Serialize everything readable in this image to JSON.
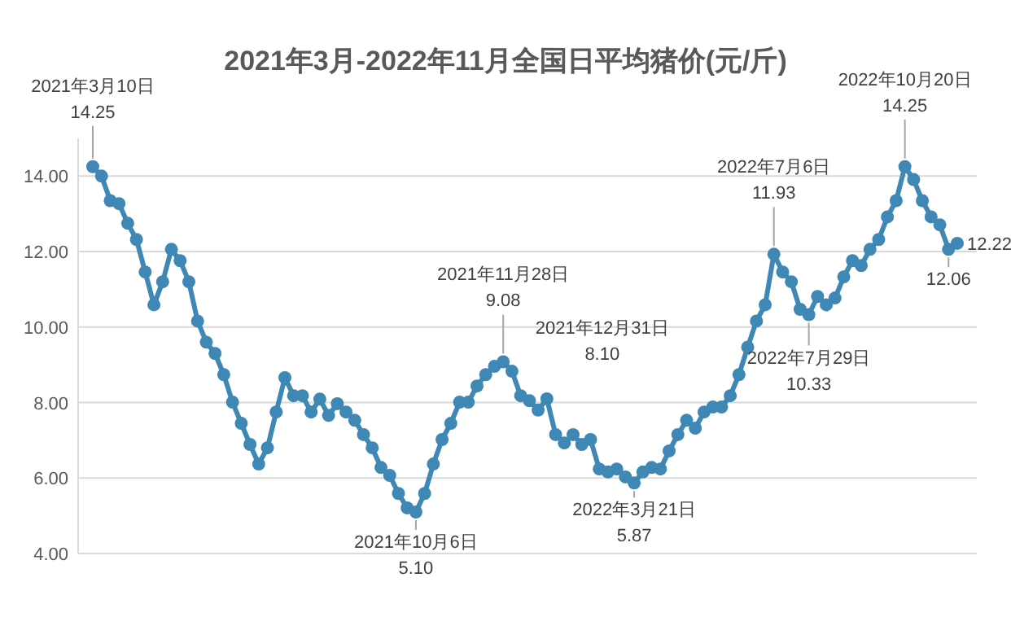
{
  "chart_data": {
    "type": "line",
    "title": "2021年3月-2022年11月全国日平均猪价(元/斤)",
    "marker": "circle",
    "grid": "y",
    "ylim": [
      4,
      15
    ],
    "yticks": [
      {
        "value": 4,
        "label": "4.00"
      },
      {
        "value": 6,
        "label": "6.00"
      },
      {
        "value": 8,
        "label": "8.00"
      },
      {
        "value": 10,
        "label": "10.00"
      },
      {
        "value": 12,
        "label": "12.00"
      },
      {
        "value": 14,
        "label": "14.00"
      }
    ],
    "categories": [
      null,
      null,
      null,
      null,
      null,
      null,
      null,
      null,
      null,
      null,
      null,
      null,
      null,
      null,
      null,
      null,
      null,
      null,
      null,
      null,
      null,
      null,
      null,
      null,
      null,
      null,
      null,
      null,
      null,
      null,
      null,
      null,
      null,
      null,
      null,
      null,
      null,
      null,
      null,
      null,
      null,
      null,
      null,
      null,
      null,
      null,
      null,
      null,
      null,
      null,
      null,
      null,
      null,
      null,
      null,
      null,
      null,
      null,
      null,
      null,
      null,
      null,
      null,
      null,
      null,
      null,
      null,
      null,
      null,
      null,
      null,
      null,
      null,
      null,
      null,
      null,
      null,
      null,
      null,
      null,
      null,
      null,
      null,
      null,
      null,
      null,
      null,
      null,
      null,
      null,
      null,
      null,
      null,
      null,
      null,
      null,
      null,
      null,
      null,
      null
    ],
    "series": [
      {
        "color": "#3f87b4",
        "values": [
          14.25,
          14.0,
          13.35,
          13.27,
          12.75,
          12.32,
          11.46,
          10.59,
          11.2,
          12.06,
          11.76,
          11.2,
          10.16,
          9.6,
          9.3,
          8.74,
          8.01,
          7.45,
          6.89,
          6.37,
          6.8,
          7.75,
          8.66,
          8.18,
          8.18,
          7.75,
          8.09,
          7.66,
          7.97,
          7.75,
          7.53,
          7.15,
          6.8,
          6.28,
          6.07,
          5.59,
          5.21,
          5.1,
          5.59,
          6.37,
          7.02,
          7.45,
          8.01,
          8.01,
          8.44,
          8.74,
          8.96,
          9.08,
          8.83,
          8.18,
          8.05,
          7.8,
          8.1,
          7.15,
          6.93,
          7.15,
          6.89,
          7.02,
          6.24,
          6.16,
          6.24,
          6.03,
          5.87,
          6.16,
          6.28,
          6.24,
          6.72,
          7.15,
          7.53,
          7.32,
          7.75,
          7.88,
          7.88,
          8.18,
          8.74,
          9.47,
          10.16,
          10.59,
          11.93,
          11.46,
          11.2,
          10.47,
          10.33,
          10.81,
          10.59,
          10.77,
          11.33,
          11.76,
          11.63,
          12.06,
          12.32,
          12.92,
          13.35,
          14.25,
          13.91,
          13.35,
          12.92,
          12.71,
          12.06,
          12.22
        ]
      }
    ],
    "annotations": [
      "2021年3月10日\n14.25",
      "2021年10月6日\n5.10",
      "2021年11月28日\n9.08",
      "2021年12月31日\n8.10",
      "2022年3月21日\n5.87",
      "2022年7月6日\n11.93",
      "2022年7月29日\n10.33",
      "2022年10月20日\n14.25",
      "12.06",
      "12.22"
    ]
  }
}
